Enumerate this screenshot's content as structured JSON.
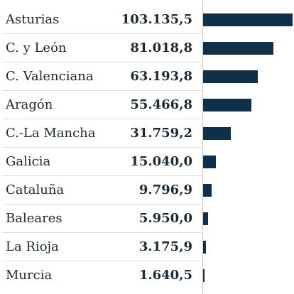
{
  "chart_data": {
    "type": "bar",
    "orientation": "horizontal",
    "title": "",
    "xlabel": "",
    "ylabel": "",
    "categories": [
      "Asturias",
      "C. y León",
      "C. Valenciana",
      "Aragón",
      "C.-La Mancha",
      "Galicia",
      "Cataluña",
      "Baleares",
      "La Rioja",
      "Murcia"
    ],
    "values": [
      103135.5,
      81018.8,
      63193.8,
      55466.8,
      31759.2,
      15040.0,
      9796.9,
      5950.0,
      3175.9,
      1640.5
    ],
    "value_labels": [
      "103.135,5",
      "81.018,8",
      "63.193,8",
      "55.466,8",
      "31.759,2",
      "15.040,0",
      "9.796,9",
      "5.950,0",
      "3.175,9",
      "1.640,5"
    ],
    "xlim": [
      0,
      103135.5
    ],
    "grid": false,
    "legend": "none",
    "bar_color": "#0f3048"
  }
}
